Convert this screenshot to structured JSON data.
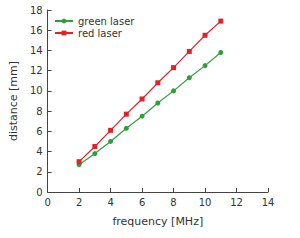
{
  "chart_data": {
    "type": "line",
    "x_label": "frequency [MHz]",
    "y_label": "distance [mm]",
    "x": [
      2,
      3,
      4,
      5,
      6,
      7,
      8,
      9,
      10,
      11
    ],
    "series": [
      {
        "name": "green laser",
        "color": "#2f9e3b",
        "marker": "circle",
        "line_style": "solid",
        "values": [
          2.7,
          3.8,
          5.0,
          6.3,
          7.5,
          8.8,
          10.0,
          11.3,
          12.5,
          13.8
        ]
      },
      {
        "name": "red laser",
        "color": "#e4202a",
        "marker": "square",
        "line_style": "solid",
        "values": [
          3.0,
          4.5,
          6.1,
          7.7,
          9.2,
          10.8,
          12.3,
          13.9,
          15.5,
          16.9
        ]
      }
    ],
    "xlim": [
      0,
      14
    ],
    "xticks": [
      0,
      2,
      4,
      6,
      8,
      10,
      12,
      14
    ],
    "ylim": [
      0,
      18
    ],
    "yticks": [
      0,
      2,
      4,
      6,
      8,
      10,
      12,
      14,
      16,
      18
    ],
    "grid": false,
    "legend": "upper left"
  }
}
